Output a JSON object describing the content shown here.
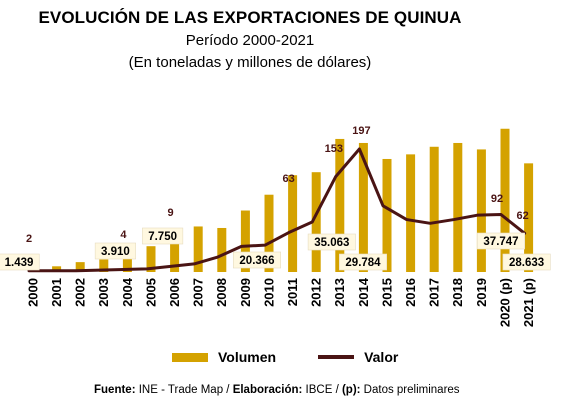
{
  "chart_data": {
    "type": "bar+line",
    "title": "EVOLUCIÓN DE LAS EXPORTACIONES DE QUINUA",
    "subtitle": [
      "Período 2000-2021",
      "(En toneladas y millones de dólares)"
    ],
    "categories": [
      "2000",
      "2001",
      "2002",
      "2003",
      "2004",
      "2005",
      "2006",
      "2007",
      "2008",
      "2009",
      "2010",
      "2011",
      "2012",
      "2013",
      "2014",
      "2015",
      "2016",
      "2017",
      "2018",
      "2019",
      "2020 (p)",
      "2021 (p)"
    ],
    "series": [
      {
        "name": "Volumen",
        "type": "bar",
        "values": [
          1439,
          1500,
          2600,
          3300,
          3910,
          6800,
          7750,
          12000,
          11600,
          16200,
          20366,
          25500,
          26300,
          35063,
          34000,
          29784,
          31000,
          33000,
          34000,
          32300,
          37747,
          28633
        ],
        "labels": {
          "0": "1.439",
          "4": "3.910",
          "6": "7.750",
          "10": "20.366",
          "13": "35.063",
          "15": "29.784",
          "20": "37.747",
          "21": "28.633"
        }
      },
      {
        "name": "Valor",
        "type": "line",
        "values": [
          2,
          2,
          2,
          3,
          4,
          5,
          9,
          13,
          24,
          41,
          43,
          63,
          80,
          153,
          197,
          106,
          84,
          78,
          84,
          91,
          92,
          62
        ],
        "labels": {
          "0": "2",
          "4": "4",
          "6": "9",
          "11": "63",
          "13": "153",
          "14": "197",
          "20": "92",
          "21": "62"
        }
      }
    ],
    "colors": {
      "bar": "#d4a200",
      "line": "#4a1414"
    },
    "legend": "bottom"
  },
  "footer": {
    "fuente_label": "Fuente:",
    "fuente_text": " INE - Trade Map / ",
    "elaboracion_label": "Elaboración:",
    "elaboracion_text": " IBCE / ",
    "p_label": "(p):",
    "p_text": " Datos preliminares"
  }
}
